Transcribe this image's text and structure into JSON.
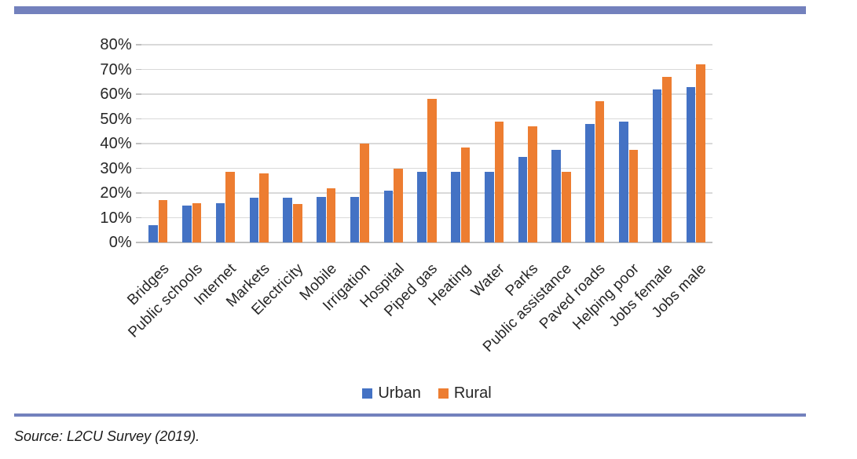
{
  "accent": {
    "rule_color": "#7381BD"
  },
  "chart_data": {
    "type": "bar",
    "title": "",
    "categories": [
      "Bridges",
      "Public schools",
      "Internet",
      "Markets",
      "Electricity",
      "Mobile",
      "Irrigation",
      "Hospital",
      "Piped gas",
      "Heating",
      "Water",
      "Parks",
      "Public assistance",
      "Paved roads",
      "Helping poor",
      "Jobs female",
      "Jobs male"
    ],
    "series": [
      {
        "name": "Urban",
        "color": "#4472C4",
        "values": [
          7,
          15,
          16,
          18,
          18,
          18.5,
          18.5,
          21,
          28.5,
          28.5,
          28.5,
          34.5,
          37.5,
          48,
          49,
          62,
          63
        ]
      },
      {
        "name": "Rural",
        "color": "#ED7D31",
        "values": [
          17,
          16,
          28.5,
          28,
          15.5,
          22,
          40,
          30,
          58,
          38.5,
          49,
          47,
          28.5,
          57,
          37.5,
          67,
          72
        ]
      }
    ],
    "xlabel": "",
    "ylabel": "",
    "ylim": [
      0,
      80
    ],
    "ytick_step": 10,
    "ytick_labels": [
      "0%",
      "10%",
      "20%",
      "30%",
      "40%",
      "50%",
      "60%",
      "70%",
      "80%"
    ],
    "grid": "horizontal",
    "gridline_color": "#D9D9D9",
    "axis_color": "#BFBFBF",
    "legend_position": "bottom",
    "x_label_rotation_deg": -45
  },
  "source_note": "Source: L2CU Survey (2019)."
}
